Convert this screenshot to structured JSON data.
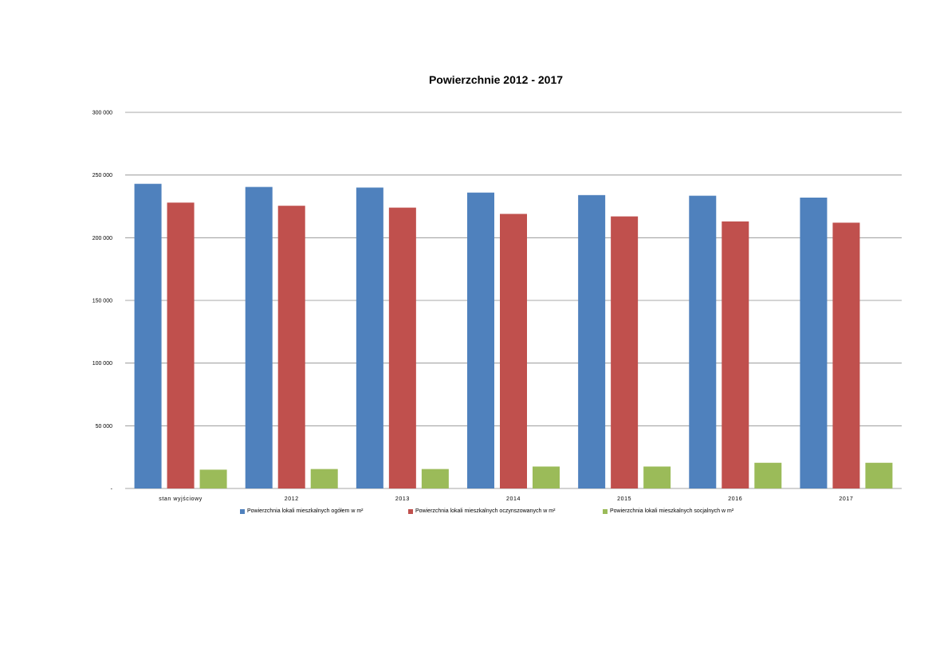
{
  "chart_data": {
    "type": "bar",
    "title": "Powierzchnie 2012 - 2017",
    "xlabel": "",
    "ylabel": "",
    "categories": [
      "stan wyjściowy",
      "2012",
      "2013",
      "2014",
      "2015",
      "2016",
      "2017"
    ],
    "series": [
      {
        "name": "Powierzchnia lokali mieszkalnych ogółem w m²",
        "color": "#4F81BD",
        "values": [
          243000,
          240500,
          240000,
          236000,
          234000,
          233500,
          232000
        ]
      },
      {
        "name": "Powierzchnia lokali mieszkalnych oczynszowanych w m²",
        "color": "#C0504D",
        "values": [
          228000,
          225500,
          224000,
          219000,
          217000,
          213000,
          212000
        ]
      },
      {
        "name": "Powierzchnia lokali mieszkalnych socjalnych w m²",
        "color": "#9BBB59",
        "values": [
          15000,
          15500,
          15500,
          17500,
          17500,
          20500,
          20500
        ]
      }
    ],
    "ylim": [
      0,
      300000
    ],
    "yticks": [
      0,
      50000,
      100000,
      150000,
      200000,
      250000,
      300000
    ],
    "ytick_labels": [
      "-",
      "50 000",
      "100 000",
      "150 000",
      "200 000",
      "250 000",
      "300 000"
    ],
    "grid": true,
    "legend_position": "bottom"
  }
}
